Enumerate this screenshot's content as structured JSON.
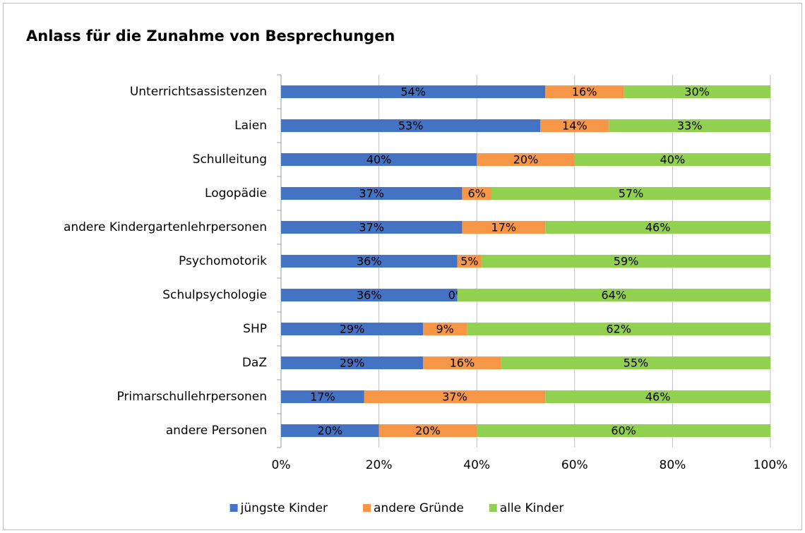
{
  "chart_data": {
    "type": "stacked_bar_horizontal",
    "title": "Anlass für die Zunahme von Besprechungen",
    "categories": [
      "Unterrichtsassistenzen",
      "Laien",
      "Schulleitung",
      "Logopädie",
      "andere Kindergartenlehrpersonen",
      "Psychomotorik",
      "Schulpsychologie",
      "SHP",
      "DaZ",
      "Primarschullehrpersonen",
      "andere Personen"
    ],
    "series": [
      {
        "name": "jüngste Kinder",
        "color": "#4472c4",
        "values": [
          54,
          53,
          40,
          37,
          37,
          36,
          36,
          29,
          29,
          17,
          20
        ],
        "value_labels": [
          "54%",
          "53%",
          "40%",
          "37%",
          "37%",
          "36%",
          "36%",
          "29%",
          "29%",
          "17%",
          "20%"
        ]
      },
      {
        "name": "andere Gründe",
        "color": "#f79646",
        "values": [
          16,
          14,
          20,
          6,
          17,
          5,
          0,
          9,
          16,
          37,
          20
        ],
        "value_labels": [
          "16%",
          "14%",
          "20%",
          "6%",
          "17%",
          "5%",
          "0%",
          "9%",
          "16%",
          "37%",
          "20%"
        ]
      },
      {
        "name": "alle Kinder",
        "color": "#92d050",
        "values": [
          30,
          33,
          40,
          57,
          46,
          59,
          64,
          62,
          55,
          46,
          60
        ],
        "value_labels": [
          "30%",
          "33%",
          "40%",
          "57%",
          "46%",
          "59%",
          "64%",
          "62%",
          "55%",
          "46%",
          "60%"
        ]
      }
    ],
    "xlim": [
      0,
      100
    ],
    "xticks": [
      {
        "value": 0,
        "label": "0%"
      },
      {
        "value": 20,
        "label": "20%"
      },
      {
        "value": 40,
        "label": "40%"
      },
      {
        "value": 60,
        "label": "60%"
      },
      {
        "value": 80,
        "label": "80%"
      },
      {
        "value": 100,
        "label": "100%"
      }
    ],
    "grid": true,
    "legend": "bottom"
  }
}
